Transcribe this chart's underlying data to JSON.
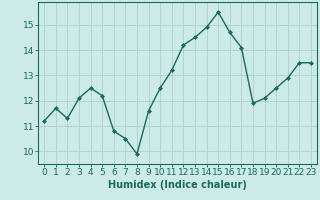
{
  "x": [
    0,
    1,
    2,
    3,
    4,
    5,
    6,
    7,
    8,
    9,
    10,
    11,
    12,
    13,
    14,
    15,
    16,
    17,
    18,
    19,
    20,
    21,
    22,
    23
  ],
  "y": [
    11.2,
    11.7,
    11.3,
    12.1,
    12.5,
    12.2,
    10.8,
    10.5,
    9.9,
    11.6,
    12.5,
    13.2,
    14.2,
    14.5,
    14.9,
    15.5,
    14.7,
    14.1,
    11.9,
    12.1,
    12.5,
    12.9,
    13.5,
    13.5
  ],
  "line_color": "#1a6b5a",
  "marker": "D",
  "marker_size": 2.0,
  "bg_color": "#cceae7",
  "grid_color": "#b0ceca",
  "tick_color": "#1a6b5a",
  "xlabel": "Humidex (Indice chaleur)",
  "ylim": [
    9.5,
    15.9
  ],
  "yticks": [
    10,
    11,
    12,
    13,
    14,
    15
  ],
  "xticks": [
    0,
    1,
    2,
    3,
    4,
    5,
    6,
    7,
    8,
    9,
    10,
    11,
    12,
    13,
    14,
    15,
    16,
    17,
    18,
    19,
    20,
    21,
    22,
    23
  ],
  "xlabel_fontsize": 7,
  "tick_fontsize": 6.5,
  "line_width": 1.0
}
